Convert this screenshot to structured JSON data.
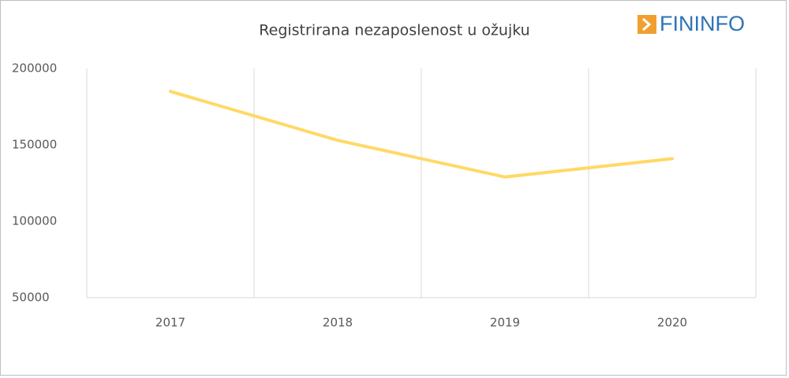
{
  "chart_data": {
    "type": "line",
    "title": "Registrirana nezaposlenost u ožujku",
    "logo": "FININFO",
    "categories": [
      "2017",
      "2018",
      "2019",
      "2020"
    ],
    "series": [
      {
        "name": "Registrirana nezaposlenost",
        "color": "#ffd966",
        "values": [
          185000,
          153000,
          129000,
          141000
        ]
      }
    ],
    "ylim": [
      50000,
      200000
    ],
    "yticks": [
      50000,
      100000,
      150000,
      200000
    ]
  }
}
